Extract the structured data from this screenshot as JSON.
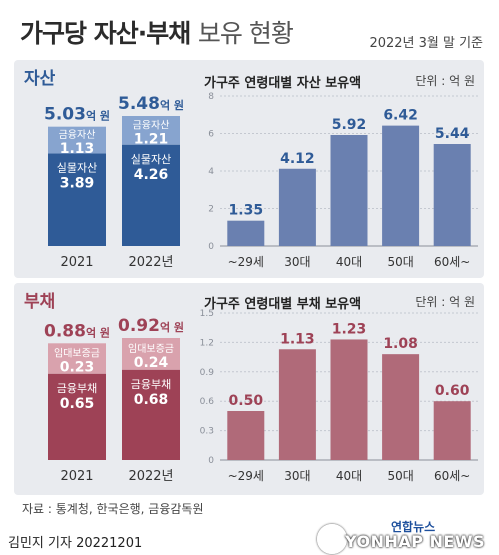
{
  "header": {
    "title_bold": "가구당 자산·부채",
    "title_thin": "보유 현황",
    "basis": "2022년 3월 말 기준"
  },
  "asset_section": {
    "label": "자산",
    "chart_title": "가구주 연령대별 자산 보유액",
    "unit": "단위 : 억 원"
  },
  "debt_section": {
    "label": "부채",
    "chart_title": "가구주 연령대별 부채 보유액",
    "unit": "단위 : 억 원"
  },
  "footer": {
    "source": "자료 : 통계청, 한국은행, 금융감독원",
    "byline": "김민지 기자  20221201",
    "logo_kr": "연합뉴스",
    "logo_en": "YONHAP NEWS"
  },
  "colors": {
    "asset_dark": "#2f5b97",
    "asset_light": "#87a4cf",
    "asset_bar": "#6a80b0",
    "asset_text": "#2f5b97",
    "debt_dark": "#9e4256",
    "debt_light": "#d9a2ad",
    "debt_bar": "#b06a79",
    "debt_text": "#9e4256"
  },
  "chart_data": [
    {
      "type": "bar",
      "stacked": true,
      "categories": [
        "2021",
        "2022년"
      ],
      "totals": [
        "5.03억 원",
        "5.48억 원"
      ],
      "total_values": [
        5.03,
        5.48
      ],
      "series": [
        {
          "name": "금융자산",
          "values": [
            1.13,
            1.21
          ]
        },
        {
          "name": "실물자산",
          "values": [
            3.89,
            4.26
          ]
        }
      ]
    },
    {
      "type": "bar",
      "title": "가구주 연령대별 자산 보유액",
      "categories": [
        "~29세",
        "30대",
        "40대",
        "50대",
        "60세~"
      ],
      "values": [
        1.35,
        4.12,
        5.92,
        6.42,
        5.44
      ],
      "value_labels": [
        "1.35",
        "4.12",
        "5.92",
        "6.42",
        "5.44"
      ],
      "yticks": [
        "0",
        "2",
        "4",
        "6",
        "8"
      ],
      "ylim": [
        0,
        8
      ],
      "grid": true
    },
    {
      "type": "bar",
      "stacked": true,
      "categories": [
        "2021",
        "2022년"
      ],
      "totals": [
        "0.88억 원",
        "0.92억 원"
      ],
      "total_values": [
        0.88,
        0.92
      ],
      "series": [
        {
          "name": "임대보증금",
          "values": [
            0.23,
            0.24
          ]
        },
        {
          "name": "금융부채",
          "values": [
            0.65,
            0.68
          ]
        }
      ]
    },
    {
      "type": "bar",
      "title": "가구주 연령대별 부채 보유액",
      "categories": [
        "~29세",
        "30대",
        "40대",
        "50대",
        "60세~"
      ],
      "values": [
        0.5,
        1.13,
        1.23,
        1.08,
        0.6
      ],
      "value_labels": [
        "0.50",
        "1.13",
        "1.23",
        "1.08",
        "0.60"
      ],
      "yticks": [
        "0",
        "0.3",
        "0.6",
        "0.9",
        "1.2",
        "1.5"
      ],
      "ylim": [
        0,
        1.5
      ],
      "grid": true
    }
  ]
}
